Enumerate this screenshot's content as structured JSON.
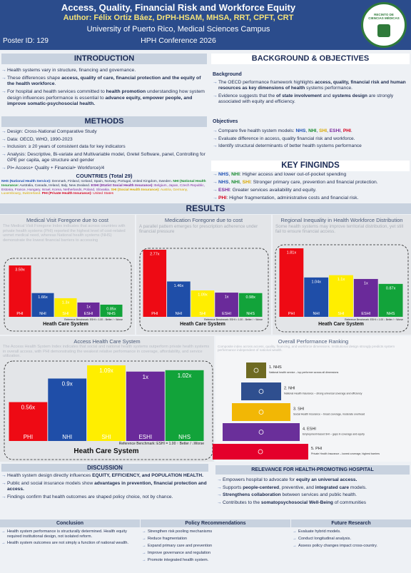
{
  "header": {
    "title": "Access, Quality, Financial Risk and Workforce Equity",
    "author": "Author: Félix Ortiz Báez, DrPH-HSAM, MHSA, RRT, CPFT, CRT",
    "institution": "University of Puerto Rico, Medical Sciences Campus",
    "poster_id": "Poster ID: 129",
    "conference": "HPH Conference 2026",
    "logo_text": "RECINTO DE CIENCIAS MÉDICAS"
  },
  "introduction": {
    "heading": "INTRODUCTION",
    "items": [
      "Health systems vary in structure, financing and governance.",
      [
        {
          "t": "These differences shape "
        },
        {
          "t": "access, quality of care, financial  protection and the equity of the health workforce",
          "b": true
        },
        {
          "t": "."
        }
      ],
      [
        {
          "t": "For hospital and health services committed to "
        },
        {
          "t": "health promotion",
          "b": true
        },
        {
          "t": " understanding how system design influences performance is essential to "
        },
        {
          "t": "advance equity, empower people, and improve somatic-psychosocial health.",
          "b": true
        }
      ]
    ]
  },
  "methods": {
    "heading": "METHODS",
    "items": [
      "Design: Cross-National Comparative Study",
      "Data: OECD, WHO, 1990-2023",
      "Inclusion: ≥ 20 years of consistent data for key indicators",
      "Analysis: Descriptive, Bi-variate and Multivariable model, Gretel Software, panel, Controlling for GPE per capita, age structure and gender",
      "PI= Access+ Quality + Financial+ Workforce)/4"
    ],
    "countries_heading": "COUNTRIES (Total 29)",
    "countries": [
      {
        "t": "NHS (National Health Service):",
        "b": true,
        "color": "#1d4fb3"
      },
      {
        "t": " Denmark, Finland, Iceland, Spain, Norway, Portugal, United Kingdom, Sweden. "
      },
      {
        "t": "NHI (National Health Insurance:",
        "b": true,
        "color": "#168a2e"
      },
      {
        "t": " Australia, Canada, Ireland, Italy, New Zealand. "
      },
      {
        "t": "ESHI (Etatist Social Health Insurance):",
        "b": true,
        "color": "#7a2a9e"
      },
      {
        "t": " Belgium, Japan, Czech Republic, Estonia, France, Hungary, Israel, Korea, Netherlands, Poland, Slovakia. ",
        "color": "#7a2a9e"
      },
      {
        "t": "SHI (Social Health Insurance):",
        "b": true,
        "color": "#d9a800"
      },
      {
        "t": " Austria, Germany, Luxembourg, Switzerland. ",
        "color": "#d9a800"
      },
      {
        "t": "PHI (Private Health Insurance):",
        "b": true,
        "color": "#d6001c"
      },
      {
        "t": " United States",
        "color": "#d6001c"
      }
    ]
  },
  "background": {
    "heading": "BACKGROUND & OBJECTIVES",
    "background_heading": "Background",
    "background_items": [
      [
        {
          "t": "The OECD performance framework highlights "
        },
        {
          "t": "access, quality, financial risk and human resources as key dimensions of health",
          "b": true
        },
        {
          "t": " systems performance."
        }
      ],
      [
        {
          "t": "Evidence suggests that the "
        },
        {
          "t": "of state involvement",
          "b": true
        },
        {
          "t": " and "
        },
        {
          "t": "systems design",
          "b": true
        },
        {
          "t": " are strongly associated with equity and efficiency."
        }
      ]
    ],
    "objectives_heading": "Objectives",
    "objectives_items": [
      [
        {
          "t": "Compare five health system models: "
        },
        {
          "t": "NHS",
          "b": true,
          "color": "#1d4fb3"
        },
        {
          "t": ", "
        },
        {
          "t": "NHI",
          "b": true,
          "color": "#168a2e"
        },
        {
          "t": ", "
        },
        {
          "t": "SHI",
          "b": true,
          "color": "#d9a800"
        },
        {
          "t": ", "
        },
        {
          "t": "ESHI",
          "b": true,
          "color": "#7a2a9e"
        },
        {
          "t": ", "
        },
        {
          "t": "PHI",
          "b": true,
          "color": "#d6001c"
        },
        {
          "t": "."
        }
      ],
      "Evaluate difference in access, quality financial risk and workforce.",
      "Identify structural determinants of better health systems performance"
    ]
  },
  "key_findings": {
    "heading": "KEY FINGINDS",
    "items": [
      [
        {
          "t": "NHS",
          "b": true,
          "color": "#1d4fb3"
        },
        {
          "t": ", "
        },
        {
          "t": "NHI",
          "b": true,
          "color": "#168a2e"
        },
        {
          "t": ": Higher access and lower out-of-pocket spending"
        }
      ],
      [
        {
          "t": "NHS",
          "b": true,
          "color": "#1d4fb3"
        },
        {
          "t": ", "
        },
        {
          "t": "NHI",
          "b": true,
          "color": "#168a2e"
        },
        {
          "t": ", "
        },
        {
          "t": "SHI",
          "b": true,
          "color": "#d9a800"
        },
        {
          "t": ": Stronger primary care, prevention and financial protection."
        }
      ],
      [
        {
          "t": "ESHI",
          "b": true,
          "color": "#7a2a9e"
        },
        {
          "t": ": Greater services availability and equity."
        }
      ],
      [
        {
          "t": "PHI",
          "b": true,
          "color": "#d6001c"
        },
        {
          "t": ": Higher fragmentation, administrative costs and financial risk."
        }
      ]
    ]
  },
  "results": {
    "heading": "RESULTS",
    "charts": [
      {
        "title": "Medical Visit Foregone due to cost",
        "description": "The Medical Visit Foregone Index indicates that across countries with private health systems (PHI) reported the highest level of cost-related unmet medical need, whereas National health systems (NHS) demonstrate the lowest financial barriers to accessing",
        "categories": [
          "PHI",
          "NHI",
          "SHI",
          "ESHI",
          "NHS"
        ],
        "values": [
          3.59,
          1.66,
          1.3,
          1,
          0.85
        ],
        "value_labels": [
          "3.59x",
          "1.66x",
          "1.3x",
          "1x",
          "0.85x"
        ],
        "colors": [
          "#ee0a14",
          "#1f4ea8",
          "#ffee00",
          "#6a2a9a",
          "#12a33a"
        ],
        "xlabel": "Heath Care System",
        "benchmark": "Reference Benchmark: ESHI = 1.00 ↓ Better / ↑ Worse"
      },
      {
        "title": "Medication Foregone due to cost",
        "description": "A parallel pattern emerges for prescription adherence under financial pressure",
        "categories": [
          "PHI",
          "NHI",
          "SHI",
          "ESHI",
          "NHS"
        ],
        "values": [
          2.77,
          1.46,
          1.09,
          1,
          0.98
        ],
        "value_labels": [
          "2.77x",
          "1.46x",
          "1.09x",
          "1x",
          "0.98x"
        ],
        "colors": [
          "#ee0a14",
          "#1f4ea8",
          "#ffee00",
          "#6a2a9a",
          "#12a33a"
        ],
        "xlabel": "Heath Care System",
        "benchmark": "Reference Benchmark: ESHI = 1.00 ↓ Better / ↑ Worse"
      },
      {
        "title": "Regional Inequality in Health Workforce Distribution",
        "description": "Some health systems may improve territorial distribution, yet still fail to ensure financial access.",
        "categories": [
          "PHI",
          "NHI",
          "SHI",
          "ESHI",
          "NHS"
        ],
        "values": [
          1.81,
          1.04,
          1.1,
          1,
          0.87
        ],
        "value_labels": [
          "1.81x",
          "1.04x",
          "1.1x",
          "1x",
          "0.87x"
        ],
        "colors": [
          "#ee0a14",
          "#1f4ea8",
          "#ffee00",
          "#6a2a9a",
          "#12a33a"
        ],
        "xlabel": "Heath Care System",
        "benchmark": "Reference Benchmark: ESHI = 1.00 ↓ Better / ↑ Worse"
      },
      {
        "title": "Access Health Care System",
        "description": "The Access Health System Index indicates that social and national health systems outperform private health systems in overall access, with PHI demonstrating the weakest relative performance in coverage, affordability, and service utilization.",
        "categories": [
          "PHI",
          "NHI",
          "SHI",
          "ESHI",
          "NHS"
        ],
        "values": [
          0.56,
          0.9,
          1.09,
          1,
          1.02
        ],
        "value_labels": [
          "0.56x",
          "0.9x",
          "1.09x",
          "1x",
          "1.02x"
        ],
        "colors": [
          "#ee0a14",
          "#1f4ea8",
          "#ffee00",
          "#6a2a9a",
          "#12a33a"
        ],
        "xlabel": "Heath Care System",
        "benchmark": "Reference Benchmark: ESHI = 1.00 ↑ Better / ↓Worse"
      }
    ],
    "ranking": {
      "title": "Overall Performance Ranking",
      "description": "Composite index across access, quality, financing, and workforce dimensions. Institutional design strongly predicts system performance independent of national wealth.",
      "levels": [
        {
          "label": "1. NHS",
          "text": "National health service – top performer across all dimensions",
          "color": "#6e6a22"
        },
        {
          "label": "2. NHI",
          "text": "National Health Insurance – strong universal coverage and efficiency",
          "color": "#2f4f8f"
        },
        {
          "label": "3. SHI",
          "text": "Social Health Insurance – broad coverage, moderate overhead",
          "color": "#f2b705"
        },
        {
          "label": "4. ESHI",
          "text": "Employment-based SHI – gaps in coverage and equity",
          "color": "#6a2f9a"
        },
        {
          "label": "5. PHI",
          "text": "Private Health Insurance – lowest coverage, highest barriers",
          "color": "#e4002b"
        }
      ]
    }
  },
  "discussion": {
    "heading": "DISCUSSION",
    "items": [
      [
        {
          "t": "Health system design directly influences "
        },
        {
          "t": "EQUITY,  EFFICIENCY, and POPULATION HEALTH.",
          "b": true
        }
      ],
      [
        {
          "t": "Public and social insurance models show "
        },
        {
          "t": "advantages in prevention, financial protection and access.",
          "b": true
        }
      ],
      "Findings confirm that health outcomes are shaped policy choice, not by chance."
    ]
  },
  "relevance": {
    "heading": "RELEVANCE FOR HEALTH-PROMOTING HOSPITAL",
    "items": [
      [
        {
          "t": "Empowers hospital to advocate for "
        },
        {
          "t": "equity an  universal access.",
          "b": true
        }
      ],
      [
        {
          "t": "Supports "
        },
        {
          "t": "people-centered",
          "b": true
        },
        {
          "t": ", preventive, and "
        },
        {
          "t": "integrated care",
          "b": true
        },
        {
          "t": " models."
        }
      ],
      [
        {
          "t": "Strengthens collaboration",
          "b": true
        },
        {
          "t": " between services and  public health."
        }
      ],
      [
        {
          "t": "Contributes to the "
        },
        {
          "t": "somatopsychosocial Well-Being",
          "b": true
        },
        {
          "t": " of communities"
        }
      ]
    ]
  },
  "conclusion": {
    "heading": "Conclusion",
    "items": [
      "Health system performance is structurally determined. Health equity required institutional design, not isolated reform.",
      "Health system outcomes are not simply a function of national wealth."
    ]
  },
  "policy": {
    "heading": "Policy Recommendations",
    "items": [
      "Strengthen risk pooling  mechanisms",
      "Reduce fragmentation",
      "Expand primary care and prevention",
      "Improve governance and regulation",
      "Promote integrated health system."
    ]
  },
  "future": {
    "heading": "Future Research",
    "items": [
      "Evaluate hybrid models.",
      "Conduct longitudinal analysis.",
      "Assess policy changes impact cross-country."
    ]
  }
}
